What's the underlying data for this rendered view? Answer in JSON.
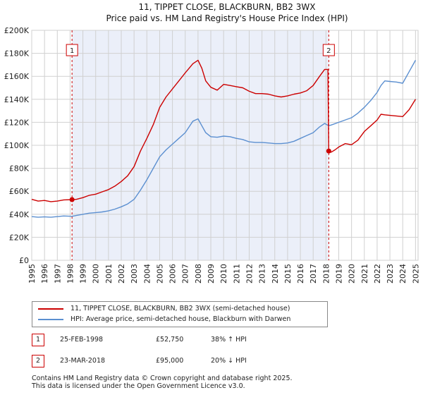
{
  "chart_data": {
    "type": "line",
    "title": "11, TIPPET CLOSE, BLACKBURN, BB2 3WX",
    "subtitle": "Price paid vs. HM Land Registry's House Price Index (HPI)",
    "xlabel": "",
    "ylabel": "",
    "xlim": [
      1995,
      2025.2
    ],
    "ylim": [
      0,
      200000
    ],
    "x_ticks": [
      "1995",
      "1996",
      "1997",
      "1998",
      "1999",
      "2000",
      "2001",
      "2002",
      "2003",
      "2004",
      "2005",
      "2006",
      "2007",
      "2008",
      "2009",
      "2010",
      "2011",
      "2012",
      "2013",
      "2014",
      "2015",
      "2016",
      "2017",
      "2018",
      "2019",
      "2020",
      "2021",
      "2022",
      "2023",
      "2024",
      "2025"
    ],
    "y_ticks": [
      {
        "value": 0,
        "label": "£0"
      },
      {
        "value": 20000,
        "label": "£20K"
      },
      {
        "value": 40000,
        "label": "£40K"
      },
      {
        "value": 60000,
        "label": "£60K"
      },
      {
        "value": 80000,
        "label": "£80K"
      },
      {
        "value": 100000,
        "label": "£100K"
      },
      {
        "value": 120000,
        "label": "£120K"
      },
      {
        "value": 140000,
        "label": "£140K"
      },
      {
        "value": 160000,
        "label": "£160K"
      },
      {
        "value": 180000,
        "label": "£180K"
      },
      {
        "value": 200000,
        "label": "£200K"
      }
    ],
    "grid": true,
    "shaded_region": [
      1998.15,
      2018.22
    ],
    "series": [
      {
        "name": "11, TIPPET CLOSE, BLACKBURN, BB2 3WX (semi-detached house)",
        "color": "#cc0000",
        "x": [
          1995.0,
          1995.5,
          1996.0,
          1996.5,
          1997.0,
          1997.5,
          1998.15,
          1998.5,
          1999.0,
          1999.5,
          2000.0,
          2000.5,
          2001.0,
          2001.5,
          2002.0,
          2002.5,
          2003.0,
          2003.5,
          2004.0,
          2004.5,
          2005.0,
          2005.5,
          2006.0,
          2006.5,
          2007.0,
          2007.3,
          2007.6,
          2008.0,
          2008.3,
          2008.6,
          2009.0,
          2009.5,
          2010.0,
          2010.5,
          2011.0,
          2011.5,
          2012.0,
          2012.5,
          2013.0,
          2013.5,
          2014.0,
          2014.5,
          2015.0,
          2015.5,
          2016.0,
          2016.5,
          2017.0,
          2017.5,
          2017.9,
          2018.15,
          2018.22,
          2018.4,
          2018.7,
          2019.0,
          2019.5,
          2020.0,
          2020.5,
          2021.0,
          2021.5,
          2022.0,
          2022.3,
          2022.6,
          2023.0,
          2023.5,
          2024.0,
          2024.5,
          2025.0
        ],
        "values": [
          53000,
          51500,
          52000,
          51000,
          51500,
          52500,
          52750,
          53000,
          54500,
          56500,
          57500,
          59500,
          61500,
          64500,
          68500,
          73500,
          81500,
          95000,
          106000,
          118000,
          133000,
          142000,
          149000,
          156000,
          163000,
          167000,
          171000,
          174000,
          167000,
          156000,
          150500,
          148000,
          153000,
          152000,
          151000,
          150000,
          147000,
          145000,
          145000,
          144500,
          143000,
          142000,
          143000,
          144500,
          145500,
          147500,
          152000,
          160000,
          166000,
          166000,
          95000,
          94000,
          96000,
          98500,
          101500,
          100500,
          104500,
          112000,
          117000,
          122000,
          127000,
          126500,
          126000,
          125500,
          125000,
          131000,
          140000
        ]
      },
      {
        "name": "HPI: Average price, semi-detached house, Blackburn with Darwen",
        "color": "#5b8fd0",
        "x": [
          1995.0,
          1995.5,
          1996.0,
          1996.5,
          1997.0,
          1997.5,
          1998.15,
          1998.5,
          1999.0,
          1999.5,
          2000.0,
          2000.5,
          2001.0,
          2001.5,
          2002.0,
          2002.5,
          2003.0,
          2003.5,
          2004.0,
          2004.5,
          2005.0,
          2005.5,
          2006.0,
          2006.5,
          2007.0,
          2007.3,
          2007.6,
          2008.0,
          2008.3,
          2008.6,
          2009.0,
          2009.5,
          2010.0,
          2010.5,
          2011.0,
          2011.5,
          2012.0,
          2012.5,
          2013.0,
          2013.5,
          2014.0,
          2014.5,
          2015.0,
          2015.5,
          2016.0,
          2016.5,
          2017.0,
          2017.5,
          2017.9,
          2018.22,
          2018.5,
          2019.0,
          2019.5,
          2020.0,
          2020.5,
          2021.0,
          2021.5,
          2022.0,
          2022.3,
          2022.6,
          2023.0,
          2023.5,
          2024.0,
          2024.5,
          2025.0
        ],
        "values": [
          38000,
          37500,
          37800,
          37500,
          38000,
          38500,
          38200,
          39000,
          40000,
          41000,
          41500,
          42000,
          43000,
          44500,
          46500,
          49000,
          53000,
          61000,
          70000,
          80000,
          90000,
          96000,
          101000,
          106000,
          111000,
          116000,
          121000,
          123000,
          117000,
          111000,
          107500,
          107000,
          108000,
          107500,
          106000,
          105000,
          103000,
          102500,
          102500,
          102000,
          101500,
          101500,
          102000,
          103500,
          106000,
          108500,
          111000,
          116000,
          119000,
          117000,
          118000,
          120000,
          122000,
          124000,
          128000,
          133000,
          139000,
          146000,
          152000,
          156000,
          155500,
          155000,
          154000,
          164000,
          174000
        ]
      }
    ],
    "annotations": [
      {
        "label": "1",
        "x": 1998.15,
        "y": 52750
      },
      {
        "label": "2",
        "x": 2018.22,
        "y": 95000
      }
    ]
  },
  "legend": {
    "entries": [
      {
        "label": "11, TIPPET CLOSE, BLACKBURN, BB2 3WX (semi-detached house)",
        "color": "#cc0000"
      },
      {
        "label": "HPI: Average price, semi-detached house, Blackburn with Darwen",
        "color": "#5b8fd0"
      }
    ]
  },
  "transactions": [
    {
      "num": "1",
      "date": "25-FEB-1998",
      "price": "£52,750",
      "hpi": "38% ↑ HPI"
    },
    {
      "num": "2",
      "date": "23-MAR-2018",
      "price": "£95,000",
      "hpi": "20% ↓ HPI"
    }
  ],
  "footer": {
    "line1": "Contains HM Land Registry data © Crown copyright and database right 2025.",
    "line2": "This data is licensed under the Open Government Licence v3.0."
  }
}
